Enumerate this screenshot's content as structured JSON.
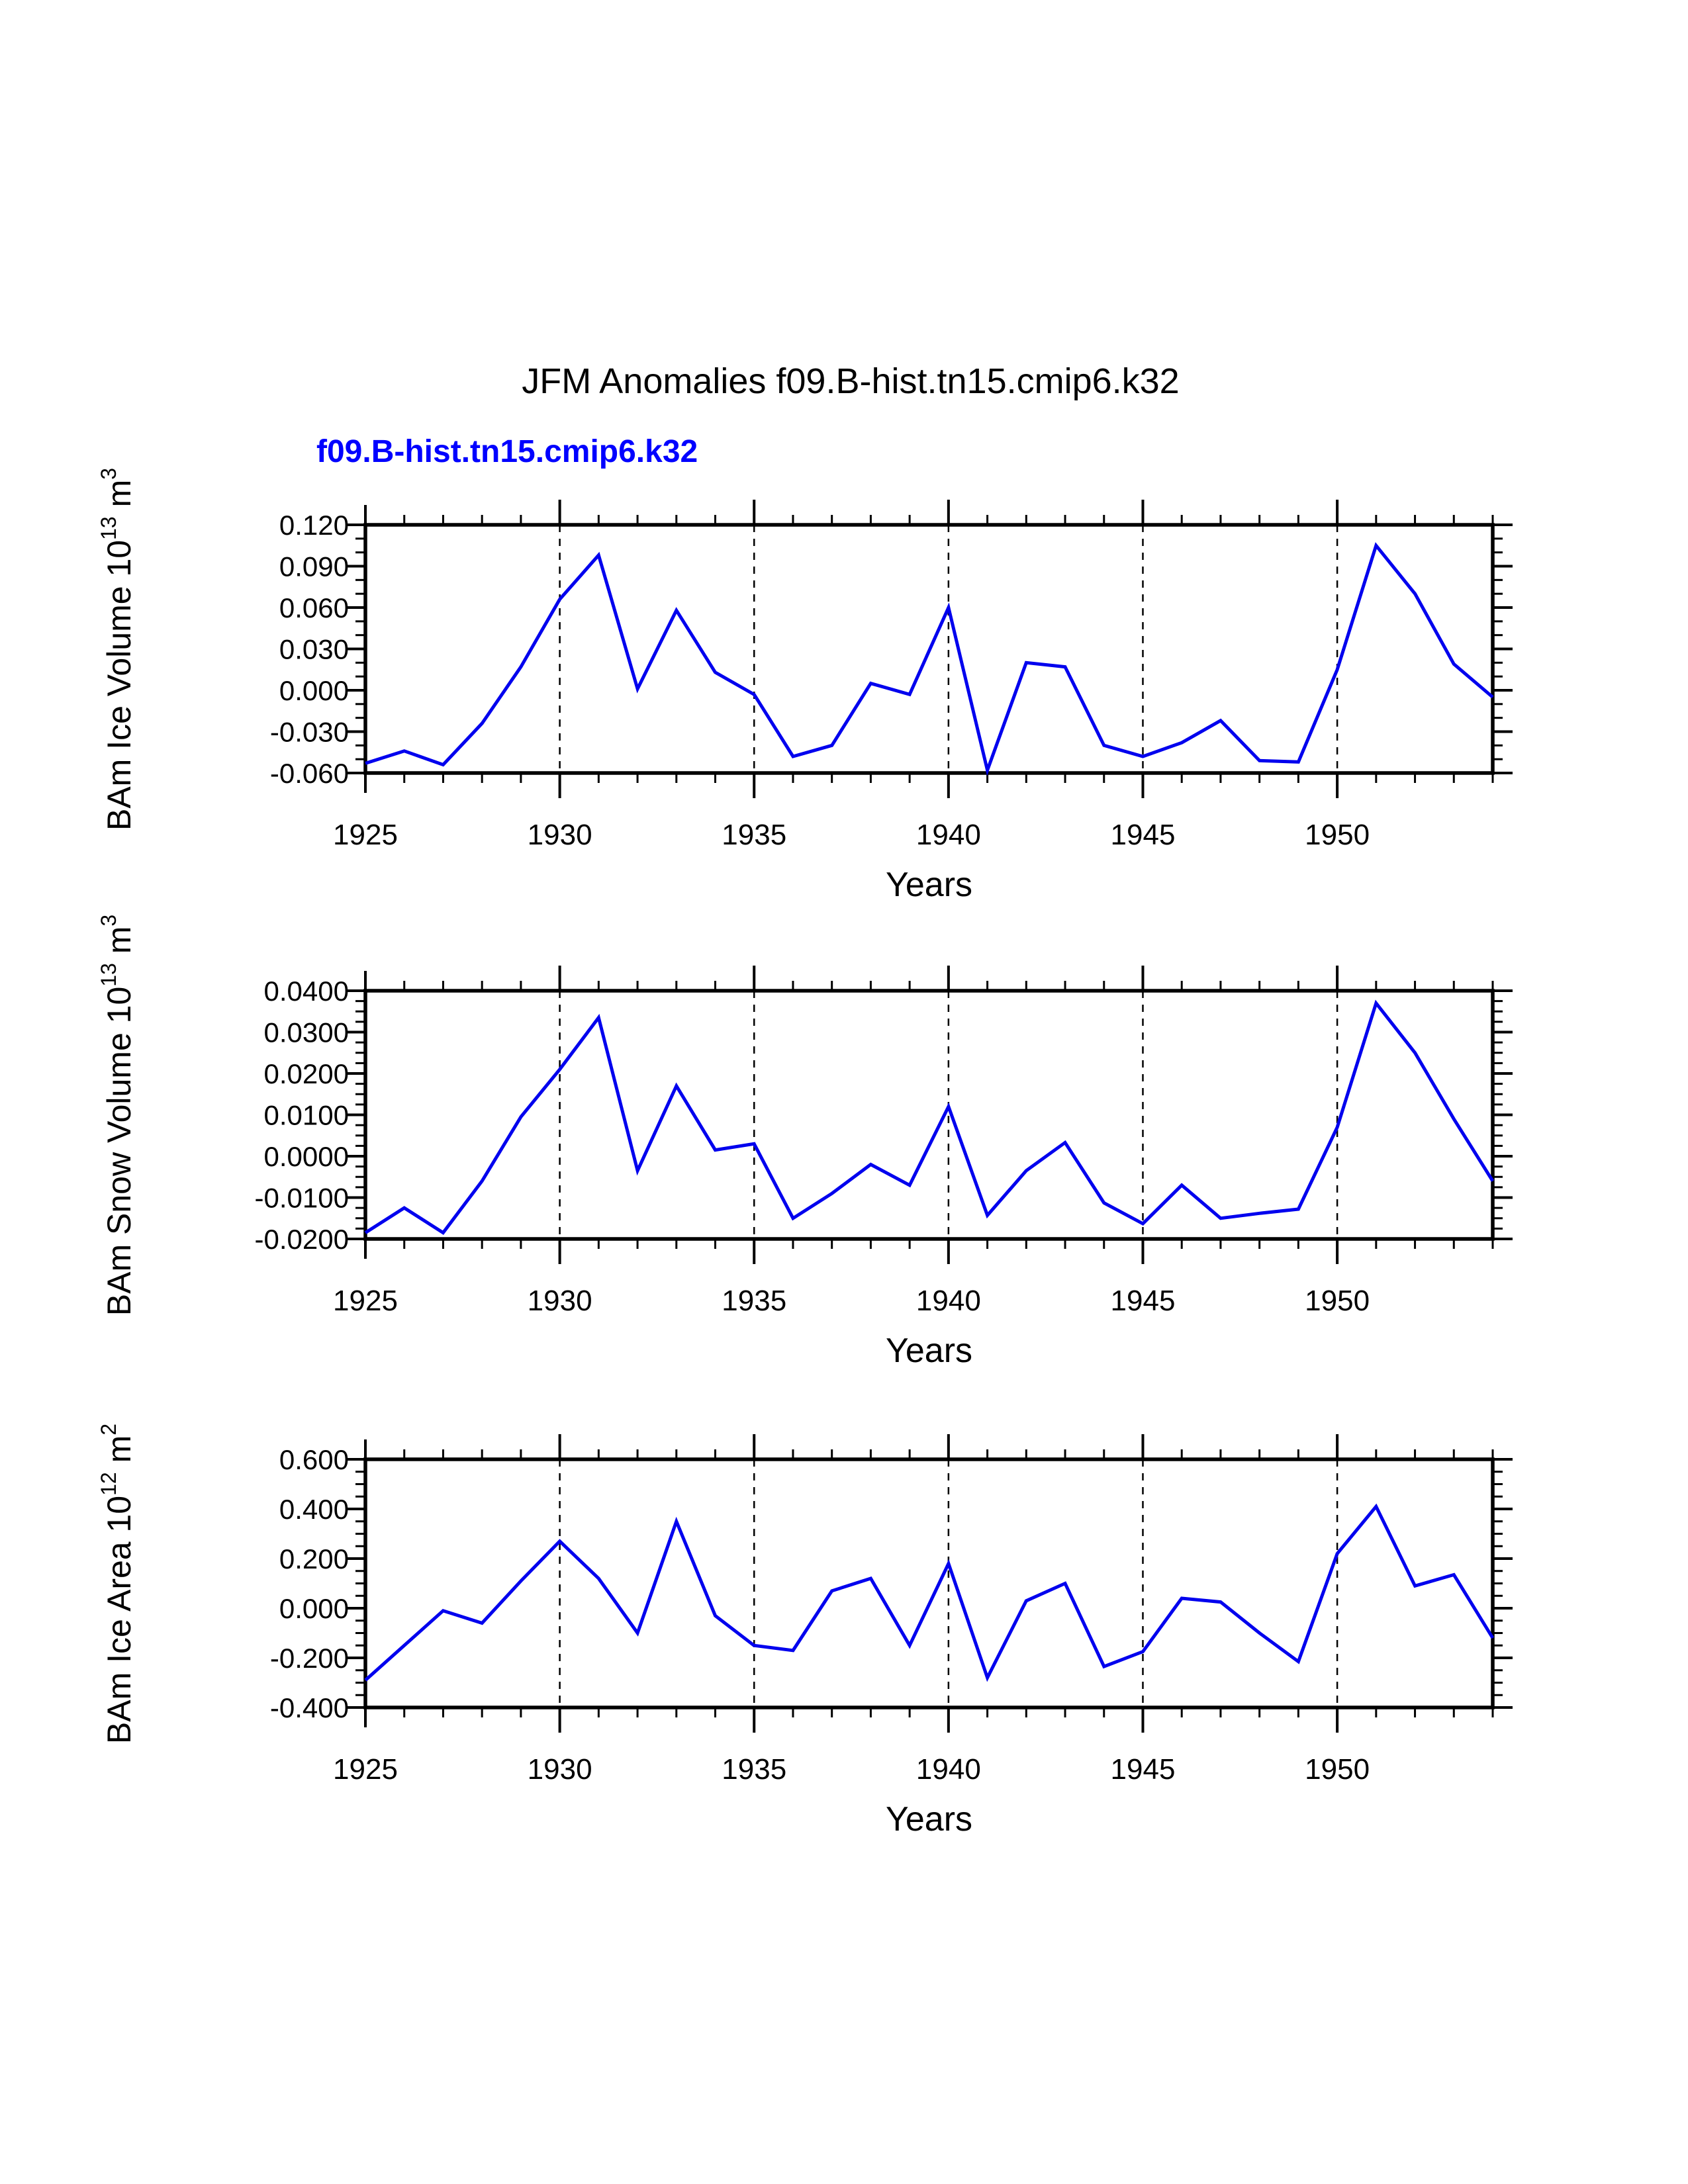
{
  "page": {
    "title": "JFM Anomalies f09.B-hist.tn15.cmip6.k32",
    "legend_label": "f09.B-hist.tn15.cmip6.k32",
    "colors": {
      "line": "#0000EE",
      "legend_text": "#0000FF",
      "axis": "#000000",
      "background": "#FFFFFF",
      "gridline": "#000000"
    }
  },
  "chart_data": [
    {
      "type": "line",
      "key": "ice-volume",
      "title": "",
      "xlabel": "Years",
      "ylabel_parts": {
        "prefix": "BAm Ice Volume 10",
        "sup": "13",
        "unit": " m",
        "unit_sup": "3"
      },
      "legend": "f09.B-hist.tn15.cmip6.k32",
      "x": [
        1925,
        1926,
        1927,
        1928,
        1929,
        1930,
        1931,
        1932,
        1933,
        1934,
        1935,
        1936,
        1937,
        1938,
        1939,
        1940,
        1941,
        1942,
        1943,
        1944,
        1945,
        1946,
        1947,
        1948,
        1949,
        1950,
        1951,
        1952,
        1953,
        1954
      ],
      "values": [
        -0.053,
        -0.044,
        -0.054,
        -0.024,
        0.017,
        0.066,
        0.098,
        0.001,
        0.058,
        0.013,
        -0.003,
        -0.048,
        -0.04,
        0.005,
        -0.003,
        0.06,
        -0.058,
        0.02,
        0.017,
        -0.04,
        -0.048,
        -0.038,
        -0.022,
        -0.051,
        -0.052,
        0.015,
        0.105,
        0.07,
        0.019,
        -0.005
      ],
      "xlim": [
        1925,
        1954
      ],
      "ylim": [
        -0.06,
        0.12
      ],
      "yticks": [
        0.12,
        0.09,
        0.06,
        0.03,
        0.0,
        -0.03,
        -0.06
      ],
      "ytick_labels": [
        "0.120",
        "0.090",
        "0.060",
        "0.030",
        "0.000",
        "-0.030",
        "-0.060"
      ],
      "y_minor_step": 0.01,
      "xticks_major": [
        1925,
        1930,
        1935,
        1940,
        1945,
        1950
      ],
      "xtick_labels": [
        "1925",
        "1930",
        "1935",
        "1940",
        "1945",
        "1950"
      ],
      "x_minor_step": 1,
      "grid_years": [
        1930,
        1935,
        1940,
        1945,
        1950
      ],
      "grid_style": "dashed",
      "legend_position": "top-left"
    },
    {
      "type": "line",
      "key": "snow-volume",
      "title": "",
      "xlabel": "Years",
      "ylabel_parts": {
        "prefix": "BAm Snow Volume 10",
        "sup": "13",
        "unit": " m",
        "unit_sup": "3"
      },
      "x": [
        1925,
        1926,
        1927,
        1928,
        1929,
        1930,
        1931,
        1932,
        1933,
        1934,
        1935,
        1936,
        1937,
        1938,
        1939,
        1940,
        1941,
        1942,
        1943,
        1944,
        1945,
        1946,
        1947,
        1948,
        1949,
        1950,
        1951,
        1952,
        1953,
        1954
      ],
      "values": [
        -0.0185,
        -0.0125,
        -0.0185,
        -0.006,
        0.0095,
        0.021,
        0.0335,
        -0.0035,
        0.017,
        0.0015,
        0.003,
        -0.015,
        -0.009,
        -0.002,
        -0.007,
        0.012,
        -0.0143,
        -0.0035,
        0.0033,
        -0.0113,
        -0.0163,
        -0.007,
        -0.015,
        -0.0138,
        -0.0128,
        0.007,
        0.037,
        0.025,
        0.009,
        -0.006
      ],
      "xlim": [
        1925,
        1954
      ],
      "ylim": [
        -0.02,
        0.04
      ],
      "yticks": [
        0.04,
        0.03,
        0.02,
        0.01,
        0.0,
        -0.01,
        -0.02
      ],
      "ytick_labels": [
        "0.0400",
        "0.0300",
        "0.0200",
        "0.0100",
        "0.0000",
        "-0.0100",
        "-0.0200"
      ],
      "y_minor_step": 0.0025,
      "xticks_major": [
        1925,
        1930,
        1935,
        1940,
        1945,
        1950
      ],
      "xtick_labels": [
        "1925",
        "1930",
        "1935",
        "1940",
        "1945",
        "1950"
      ],
      "x_minor_step": 1,
      "grid_years": [
        1930,
        1935,
        1940,
        1945,
        1950
      ],
      "grid_style": "dashed",
      "legend_position": "none"
    },
    {
      "type": "line",
      "key": "ice-area",
      "title": "",
      "xlabel": "Years",
      "ylabel_parts": {
        "prefix": "BAm Ice Area 10",
        "sup": "12",
        "unit": " m",
        "unit_sup": "2"
      },
      "x": [
        1925,
        1926,
        1927,
        1928,
        1929,
        1930,
        1931,
        1932,
        1933,
        1934,
        1935,
        1936,
        1937,
        1938,
        1939,
        1940,
        1941,
        1942,
        1943,
        1944,
        1945,
        1946,
        1947,
        1948,
        1949,
        1950,
        1951,
        1952,
        1953,
        1954
      ],
      "values": [
        -0.29,
        -0.15,
        -0.01,
        -0.06,
        0.11,
        0.27,
        0.12,
        -0.1,
        0.35,
        -0.03,
        -0.15,
        -0.17,
        0.07,
        0.12,
        -0.15,
        0.18,
        -0.28,
        0.03,
        0.1,
        -0.235,
        -0.175,
        0.04,
        0.025,
        -0.1,
        -0.215,
        0.22,
        0.41,
        0.09,
        0.135,
        -0.12
      ],
      "xlim": [
        1925,
        1954
      ],
      "ylim": [
        -0.4,
        0.6
      ],
      "yticks": [
        0.6,
        0.4,
        0.2,
        0.0,
        -0.2,
        -0.4
      ],
      "ytick_labels": [
        "0.600",
        "0.400",
        "0.200",
        "0.000",
        "-0.200",
        "-0.400"
      ],
      "y_minor_step": 0.05,
      "xticks_major": [
        1925,
        1930,
        1935,
        1940,
        1945,
        1950
      ],
      "xtick_labels": [
        "1925",
        "1930",
        "1935",
        "1940",
        "1945",
        "1950"
      ],
      "x_minor_step": 1,
      "grid_years": [
        1930,
        1935,
        1940,
        1945,
        1950
      ],
      "grid_style": "dashed",
      "legend_position": "none"
    }
  ]
}
